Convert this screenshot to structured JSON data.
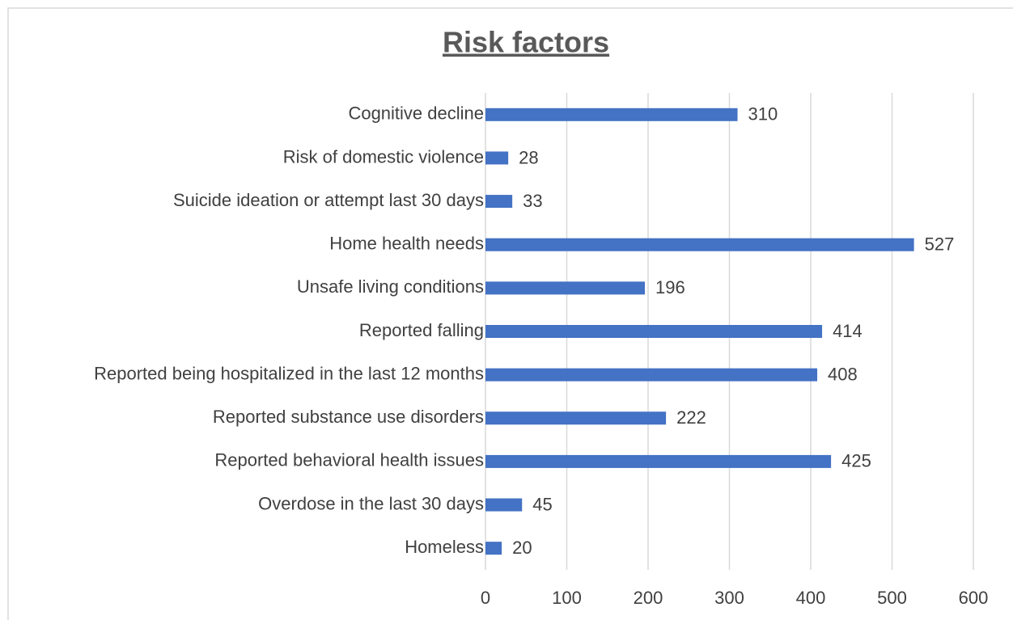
{
  "chart_data": {
    "type": "bar",
    "orientation": "horizontal",
    "title": "Risk factors",
    "categories": [
      "Cognitive decline",
      "Risk of domestic violence",
      "Suicide ideation or attempt last 30 days",
      "Home health needs",
      "Unsafe living conditions",
      "Reported falling",
      "Reported being hospitalized in the last 12 months",
      "Reported substance use disorders",
      "Reported behavioral health issues",
      "Overdose in the last 30 days",
      "Homeless"
    ],
    "values": [
      310,
      28,
      33,
      527,
      196,
      414,
      408,
      222,
      425,
      45,
      20
    ],
    "color": "#4472c4",
    "xlim": [
      0,
      600
    ],
    "xticks": [
      0,
      100,
      200,
      300,
      400,
      500,
      600
    ],
    "grid": true
  }
}
